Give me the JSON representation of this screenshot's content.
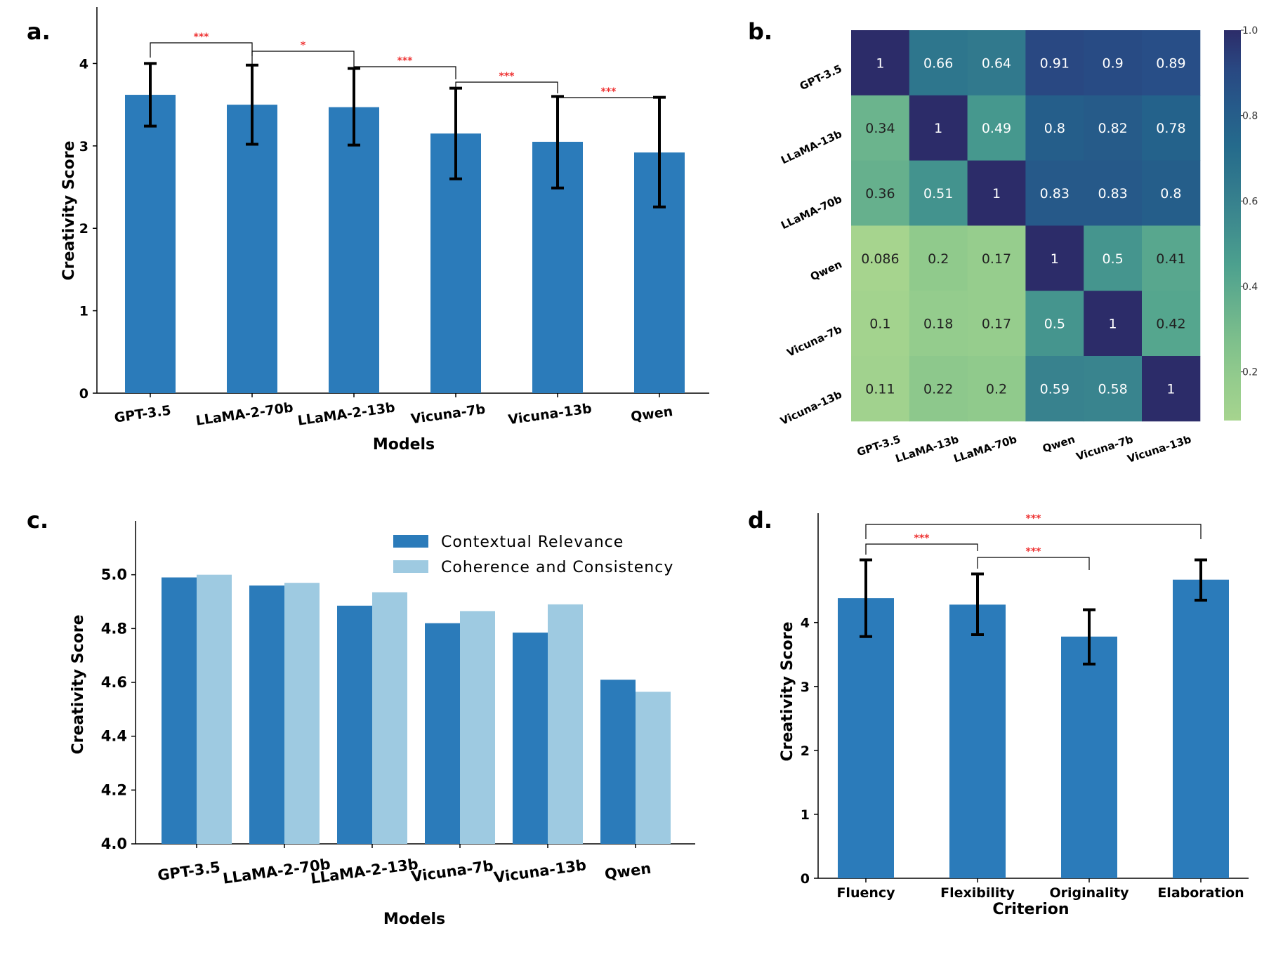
{
  "chart_data": [
    {
      "panel": "a.",
      "type": "bar",
      "categories": [
        "GPT-3.5",
        "LLaMA-2-70b",
        "LLaMA-2-13b",
        "Vicuna-7b",
        "Vicuna-13b",
        "Qwen"
      ],
      "values": [
        3.62,
        3.5,
        3.47,
        3.15,
        3.05,
        2.92
      ],
      "error_low": [
        3.24,
        3.02,
        3.01,
        2.6,
        2.49,
        2.26
      ],
      "error_high": [
        4.0,
        3.98,
        3.94,
        3.7,
        3.6,
        3.59
      ],
      "xlabel": "Models",
      "ylabel": "Creativity  Score",
      "ylim": [
        0,
        4.6
      ],
      "yticks": [
        "0",
        "1",
        "2",
        "3",
        "4"
      ],
      "color": "#2b7bba",
      "significance": [
        {
          "from": 0,
          "to": 1,
          "label": "***"
        },
        {
          "from": 1,
          "to": 2,
          "label": "*"
        },
        {
          "from": 2,
          "to": 3,
          "label": "***"
        },
        {
          "from": 3,
          "to": 4,
          "label": "***"
        },
        {
          "from": 4,
          "to": 5,
          "label": "***"
        }
      ]
    },
    {
      "panel": "b.",
      "type": "heatmap",
      "rows": [
        "GPT-3.5",
        "LLaMA-13b",
        "LLaMA-70b",
        "Qwen",
        "Vicuna-7b",
        "Vicuna-13b"
      ],
      "cols": [
        "GPT-3.5",
        "LLaMA-13b",
        "LLaMA-70b",
        "Qwen",
        "Vicuna-7b",
        "Vicuna-13b"
      ],
      "values": [
        [
          1,
          0.66,
          0.64,
          0.91,
          0.9,
          0.89
        ],
        [
          0.34,
          1,
          0.49,
          0.8,
          0.82,
          0.78
        ],
        [
          0.36,
          0.51,
          1,
          0.83,
          0.83,
          0.8
        ],
        [
          0.086,
          0.2,
          0.17,
          1,
          0.5,
          0.41
        ],
        [
          0.1,
          0.18,
          0.17,
          0.5,
          1,
          0.42
        ],
        [
          0.11,
          0.22,
          0.2,
          0.59,
          0.58,
          1
        ]
      ],
      "labels": [
        [
          "1",
          "0.66",
          "0.64",
          "0.91",
          "0.9",
          "0.89"
        ],
        [
          "0.34",
          "1",
          "0.49",
          "0.8",
          "0.82",
          "0.78"
        ],
        [
          "0.36",
          "0.51",
          "1",
          "0.83",
          "0.83",
          "0.8"
        ],
        [
          "0.086",
          "0.2",
          "0.17",
          "1",
          "0.5",
          "0.41"
        ],
        [
          "0.1",
          "0.18",
          "0.17",
          "0.5",
          "1",
          "0.42"
        ],
        [
          "0.11",
          "0.22",
          "0.2",
          "0.59",
          "0.58",
          "1"
        ]
      ],
      "colorbar": {
        "range": [
          0.086,
          1.0
        ],
        "ticks": [
          {
            "value": 1.0,
            "label": "1.0"
          },
          {
            "value": 0.8,
            "label": "0.8"
          },
          {
            "value": 0.6,
            "label": "0.6"
          },
          {
            "value": 0.4,
            "label": "0.4"
          },
          {
            "value": 0.2,
            "label": "0.2"
          }
        ],
        "colormap": "crest"
      }
    },
    {
      "panel": "c.",
      "type": "bar",
      "categories": [
        "GPT-3.5",
        "LLaMA-2-70b",
        "LLaMA-2-13b",
        "Vicuna-7b",
        "Vicuna-13b",
        "Qwen"
      ],
      "series": [
        {
          "name": "Contextual  Relevance",
          "values": [
            4.99,
            4.96,
            4.885,
            4.82,
            4.785,
            4.61
          ],
          "color": "#2b7bba"
        },
        {
          "name": "Coherence and  Consistency",
          "values": [
            5.0,
            4.97,
            4.935,
            4.865,
            4.89,
            4.565
          ],
          "color": "#9ecae1"
        }
      ],
      "xlabel": "Models",
      "ylabel": "Creativity  Score",
      "ylim": [
        4.0,
        5.2
      ],
      "yticks": [
        "4.0",
        "4.2",
        "4.4",
        "4.6",
        "4.8",
        "5.0"
      ],
      "legend": "top-right"
    },
    {
      "panel": "d.",
      "type": "bar",
      "categories": [
        "Fluency",
        "Flexibility",
        "Originality",
        "Elaboration"
      ],
      "values": [
        4.38,
        4.28,
        3.78,
        4.67
      ],
      "error_low": [
        3.78,
        3.81,
        3.35,
        4.35
      ],
      "error_high": [
        4.98,
        4.76,
        4.2,
        4.98
      ],
      "xlabel": "Criterion",
      "ylabel": "Creativity  Score",
      "ylim": [
        0,
        5.6
      ],
      "yticks": [
        "0",
        "1",
        "2",
        "3",
        "4"
      ],
      "color": "#2b7bba",
      "significance": [
        {
          "from": 0,
          "to": 3,
          "label": "***"
        },
        {
          "from": 0,
          "to": 1,
          "label": "***"
        },
        {
          "from": 1,
          "to": 2,
          "label": "***"
        }
      ]
    }
  ]
}
